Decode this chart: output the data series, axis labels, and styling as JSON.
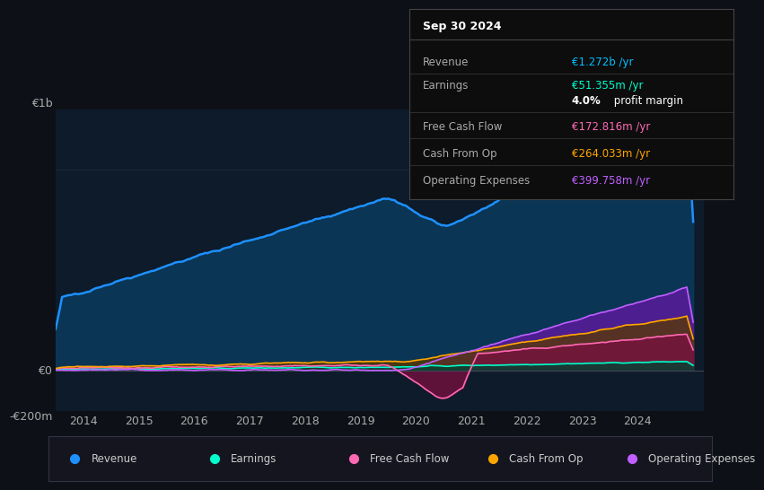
{
  "bg_color": "#0d1117",
  "plot_bg_color": "#0d1b2a",
  "ylim": [
    -200,
    1300
  ],
  "ylabel_top": "€1b",
  "ylabel_zero": "€0",
  "ylabel_bottom": "-€200m",
  "xlabel_ticks": [
    2014,
    2015,
    2016,
    2017,
    2018,
    2019,
    2020,
    2021,
    2022,
    2023,
    2024
  ],
  "info_box": {
    "title": "Sep 30 2024",
    "rows": [
      {
        "label": "Revenue",
        "value": "€1.272b /yr",
        "value_color": "#00bfff"
      },
      {
        "label": "Earnings",
        "value": "€51.355m /yr",
        "value_color": "#00ffcc"
      },
      {
        "label": "",
        "value": "4.0% profit margin",
        "value_color": "#ffffff",
        "bold_prefix": "4.0%"
      },
      {
        "label": "Free Cash Flow",
        "value": "€172.816m /yr",
        "value_color": "#ff69b4"
      },
      {
        "label": "Cash From Op",
        "value": "€264.033m /yr",
        "value_color": "#ffa500"
      },
      {
        "label": "Operating Expenses",
        "value": "€399.758m /yr",
        "value_color": "#bf5fff"
      }
    ]
  },
  "series": {
    "revenue": {
      "color": "#1e90ff",
      "fill_color": "#0a3a5c",
      "label": "Revenue"
    },
    "earnings": {
      "color": "#00ffcc",
      "fill_color": "#004433",
      "label": "Earnings"
    },
    "free_cash_flow": {
      "color": "#ff69b4",
      "fill_color": "#7a1040",
      "label": "Free Cash Flow"
    },
    "cash_from_op": {
      "color": "#ffa500",
      "fill_color": "#5a3a00",
      "label": "Cash From Op"
    },
    "operating_expenses": {
      "color": "#bf5fff",
      "fill_color": "#5a1a9a",
      "label": "Operating Expenses"
    }
  },
  "legend": [
    {
      "label": "Revenue",
      "color": "#1e90ff"
    },
    {
      "label": "Earnings",
      "color": "#00ffcc"
    },
    {
      "label": "Free Cash Flow",
      "color": "#ff69b4"
    },
    {
      "label": "Cash From Op",
      "color": "#ffa500"
    },
    {
      "label": "Operating Expenses",
      "color": "#bf5fff"
    }
  ]
}
